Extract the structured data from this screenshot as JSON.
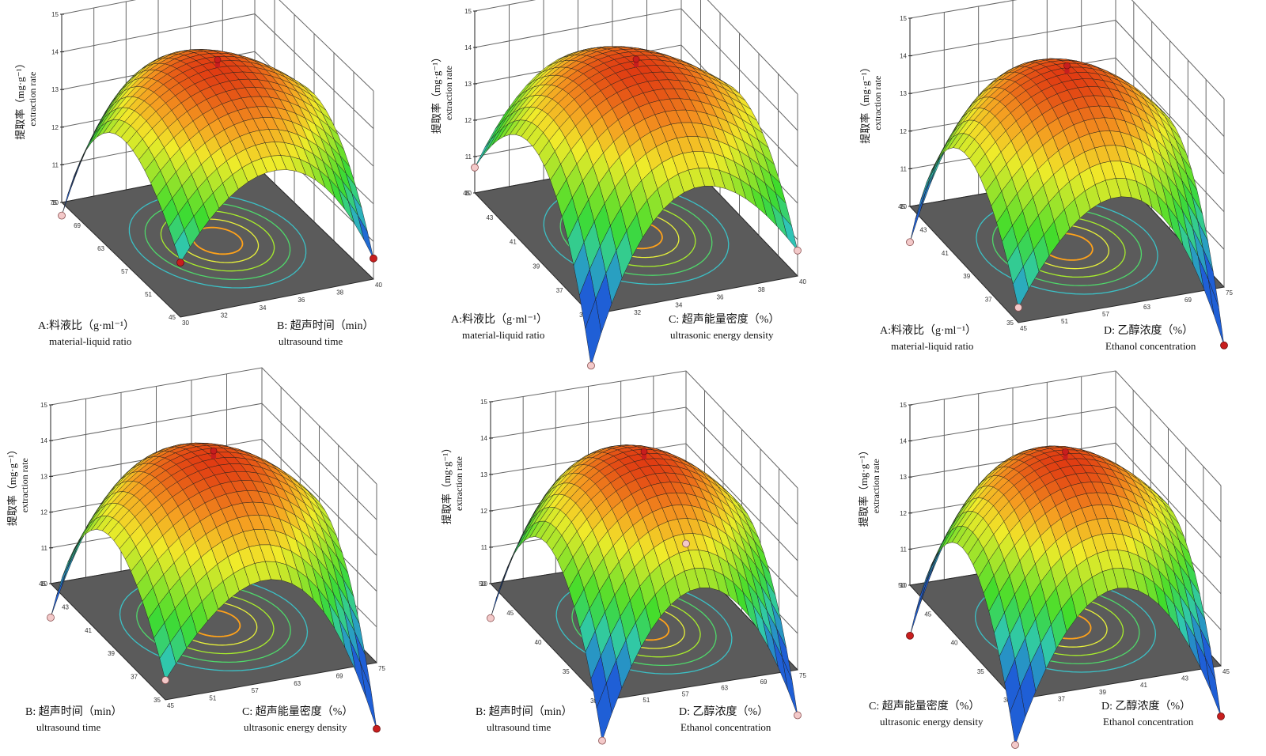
{
  "figure": {
    "background": "#ffffff"
  },
  "colors": {
    "frame": "#666666",
    "floor": "#5b5b5b",
    "floor_edge": "#2a2a2a",
    "mesh": "#1e1e1e",
    "surface_low": "#1f5fd6",
    "surface_mid": "#3fdc2c",
    "surface_high": "#f0eb2a",
    "surface_top": "#e03a12",
    "contours": [
      "#ffa21a",
      "#e9f23a",
      "#a8ee2c",
      "#4fd86a",
      "#3bc1c6"
    ],
    "point_above": "#c81e1e",
    "point_below": "#f3c9c9"
  },
  "chart_data": [
    {
      "type": "surface",
      "zlabel_zh": "提取率（mg·g⁻¹）",
      "zlabel_en": "extraction rate",
      "zticks": [
        "10",
        "11",
        "12",
        "13",
        "14",
        "15"
      ],
      "zlim": [
        10,
        15
      ],
      "left_axis": {
        "label_zh": "A:料液比（g·ml⁻¹）",
        "label_en": "material-liquid ratio",
        "ticks": [
          "45",
          "51",
          "57",
          "63",
          "69",
          "75"
        ]
      },
      "right_axis": {
        "label_zh": "B:  超声时间（min）",
        "label_en": "ultrasound time",
        "ticks": [
          "30",
          "32",
          "34",
          "36",
          "38",
          "40"
        ]
      },
      "peak": 14.6,
      "corners": {
        "left": 11.3,
        "front": 12.5,
        "right": 11.9,
        "back": 12.5
      },
      "corner_points": {
        "left": "below",
        "front": "above",
        "right": "above"
      }
    },
    {
      "type": "surface",
      "zlabel_zh": "提取率（mg·g⁻¹）",
      "zlabel_en": "extraction rate",
      "zticks": [
        "10",
        "11",
        "12",
        "13",
        "14",
        "15"
      ],
      "zlim": [
        10,
        15
      ],
      "left_axis": {
        "label_zh": "A:料液比（g·ml⁻¹）",
        "label_en": "material-liquid ratio",
        "ticks": [
          "35",
          "37",
          "39",
          "41",
          "43",
          "45"
        ]
      },
      "right_axis": {
        "label_zh": "C:  超声能量密度（%）",
        "label_en": "ultrasonic energy density",
        "ticks": [
          "30",
          "32",
          "34",
          "36",
          "38",
          "40"
        ]
      },
      "peak": 14.6,
      "corners": {
        "left": 12.0,
        "front": 10.6,
        "right": 12.0,
        "back": 12.2
      },
      "corner_points": {
        "left": "below",
        "front": "below",
        "right": "below"
      }
    },
    {
      "type": "surface",
      "zlabel_zh": "提取率（mg·g⁻¹）",
      "zlabel_en": "extraction rate",
      "zticks": [
        "10",
        "11",
        "12",
        "13",
        "14",
        "15"
      ],
      "zlim": [
        10,
        15
      ],
      "left_axis": {
        "label_zh": "A:料液比（g·ml⁻¹）",
        "label_en": "material-liquid ratio",
        "ticks": [
          "35",
          "37",
          "39",
          "41",
          "43",
          "45"
        ]
      },
      "right_axis": {
        "label_zh": "D:  乙醇浓度（%）",
        "label_en": "Ethanol concentration",
        "ticks": [
          "45",
          "51",
          "57",
          "63",
          "69",
          "75"
        ]
      },
      "peak": 14.6,
      "corners": {
        "left": 10.9,
        "front": 11.8,
        "right": 10.5,
        "back": 12.0
      },
      "corner_points": {
        "left": "below",
        "front": "below",
        "right": "above"
      }
    },
    {
      "type": "surface",
      "zlabel_zh": "提取率（mg·g⁻¹）",
      "zlabel_en": "extraction rate",
      "zticks": [
        "10",
        "11",
        "12",
        "13",
        "14",
        "15"
      ],
      "zlim": [
        10,
        15
      ],
      "left_axis": {
        "label_zh": "B:  超声时间（min）",
        "label_en": "ultrasound time",
        "ticks": [
          "35",
          "37",
          "39",
          "41",
          "43",
          "45"
        ]
      },
      "right_axis": {
        "label_zh": "C:  超声能量密度（%）",
        "label_en": "ultrasonic energy density",
        "ticks": [
          "45",
          "51",
          "57",
          "63",
          "69",
          "75"
        ]
      },
      "peak": 14.6,
      "corners": {
        "left": 10.9,
        "front": 11.9,
        "right": 10.3,
        "back": 12.0
      },
      "corner_points": {
        "left": "below",
        "front": "below",
        "right": "above"
      }
    },
    {
      "type": "surface",
      "zlabel_zh": "提取率（mg·g⁻¹）",
      "zlabel_en": "extraction rate",
      "zticks": [
        "10",
        "11",
        "12",
        "13",
        "14",
        "15"
      ],
      "zlim": [
        10,
        15
      ],
      "left_axis": {
        "label_zh": "B:  超声时间（min）",
        "label_en": "ultrasound time",
        "ticks": [
          "30",
          "35",
          "40",
          "45",
          "50"
        ]
      },
      "right_axis": {
        "label_zh": "D:  乙醇浓度（%）",
        "label_en": "Ethanol concentration",
        "ticks": [
          "45",
          "51",
          "57",
          "63",
          "69",
          "75"
        ]
      },
      "peak": 14.6,
      "corners": {
        "left": 10.9,
        "front": 10.8,
        "right": 10.7,
        "back": 11.7
      },
      "corner_points": {
        "left": "below",
        "front": "below",
        "right": "below",
        "back": "below"
      }
    },
    {
      "type": "surface",
      "zlabel_zh": "提取率（mg·g⁻¹）",
      "zlabel_en": "extraction rate",
      "zticks": [
        "10",
        "11",
        "12",
        "13",
        "14",
        "15"
      ],
      "zlim": [
        10,
        15
      ],
      "left_axis": {
        "label_zh": "C:  超声能量密度（%）",
        "label_en": "ultrasonic energy density",
        "ticks": [
          "30",
          "35",
          "40",
          "45",
          "50"
        ]
      },
      "right_axis": {
        "label_zh": "D:  乙醇浓度（%）",
        "label_en": "Ethanol concentration",
        "ticks": [
          "35",
          "37",
          "39",
          "41",
          "43",
          "45"
        ]
      },
      "peak": 14.6,
      "corners": {
        "left": 10.6,
        "front": 10.7,
        "right": 10.6,
        "back": 11.7
      },
      "corner_points": {
        "left": "above",
        "front": "below",
        "right": "above"
      }
    }
  ]
}
